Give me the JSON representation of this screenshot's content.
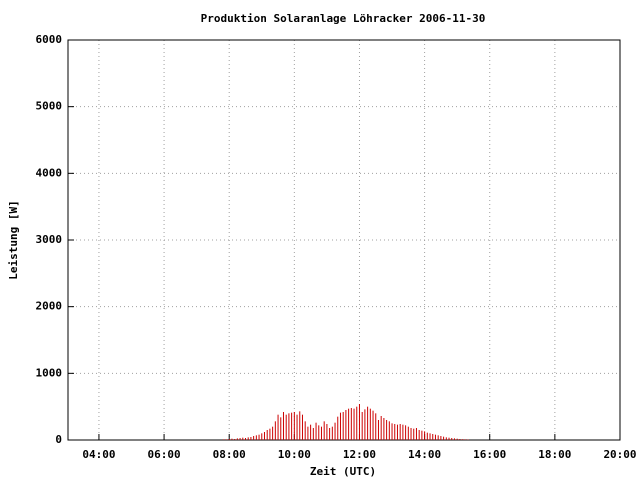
{
  "chart_data": {
    "type": "impulse",
    "title": "Produktion Solaranlage Löhracker 2006-11-30",
    "x_label": "Zeit (UTC)",
    "y_label": "Leistung [W]",
    "x": [
      470,
      475,
      480,
      485,
      490,
      495,
      500,
      505,
      510,
      515,
      520,
      525,
      530,
      535,
      540,
      545,
      550,
      555,
      560,
      565,
      570,
      575,
      580,
      585,
      590,
      595,
      600,
      605,
      610,
      615,
      620,
      625,
      630,
      635,
      640,
      645,
      650,
      655,
      660,
      665,
      670,
      675,
      680,
      685,
      690,
      695,
      700,
      705,
      710,
      715,
      720,
      725,
      730,
      735,
      740,
      745,
      750,
      755,
      760,
      765,
      770,
      775,
      780,
      785,
      790,
      795,
      800,
      805,
      810,
      815,
      820,
      825,
      830,
      835,
      840,
      845,
      850,
      855,
      860,
      865,
      870,
      875,
      880,
      885,
      890,
      895,
      900,
      905,
      910,
      915,
      920
    ],
    "values": [
      10,
      10,
      15,
      20,
      15,
      25,
      30,
      35,
      30,
      40,
      45,
      60,
      70,
      80,
      100,
      120,
      150,
      170,
      200,
      280,
      380,
      340,
      420,
      380,
      400,
      410,
      420,
      380,
      430,
      380,
      280,
      200,
      230,
      180,
      260,
      220,
      200,
      280,
      240,
      180,
      200,
      260,
      350,
      410,
      420,
      450,
      470,
      480,
      470,
      500,
      540,
      420,
      460,
      500,
      470,
      440,
      400,
      300,
      360,
      330,
      300,
      280,
      250,
      240,
      230,
      240,
      230,
      220,
      200,
      180,
      170,
      180,
      150,
      140,
      130,
      110,
      100,
      90,
      80,
      70,
      60,
      50,
      40,
      35,
      30,
      25,
      20,
      15,
      12,
      10,
      8
    ],
    "color": "#cc0000",
    "xlim": [
      183,
      1200
    ],
    "xticks": [
      {
        "value": 240,
        "label": "04:00"
      },
      {
        "value": 360,
        "label": "06:00"
      },
      {
        "value": 480,
        "label": "08:00"
      },
      {
        "value": 600,
        "label": "10:00"
      },
      {
        "value": 720,
        "label": "12:00"
      },
      {
        "value": 840,
        "label": "14:00"
      },
      {
        "value": 960,
        "label": "16:00"
      },
      {
        "value": 1080,
        "label": "18:00"
      },
      {
        "value": 1200,
        "label": "20:00"
      }
    ],
    "ylim": [
      0,
      6000
    ],
    "yticks": [
      0,
      1000,
      2000,
      3000,
      4000,
      5000,
      6000
    ],
    "grid": true
  }
}
